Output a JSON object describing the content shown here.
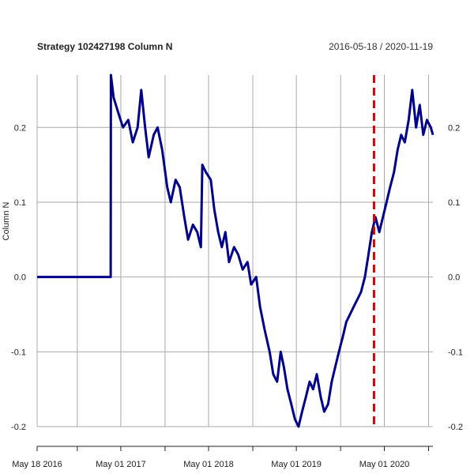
{
  "chart_data": {
    "type": "line",
    "title": "Strategy 102427198 Column N",
    "date_range": "2016-05-18 / 2020-11-19",
    "ylabel": "Column N",
    "xlabel": "",
    "xlim": [
      "2016-05-18",
      "2020-11-19"
    ],
    "ylim": [
      -0.2,
      0.27
    ],
    "y_ticks": [
      {
        "value": 0.2,
        "label": "0.2"
      },
      {
        "value": 0.1,
        "label": "0.1"
      },
      {
        "value": 0.0,
        "label": "0.0"
      },
      {
        "value": -0.1,
        "label": "-0.1"
      },
      {
        "value": -0.2,
        "label": "-0.2"
      }
    ],
    "x_labels": [
      {
        "date": "2016-05-18",
        "label": "May 18 2016"
      },
      {
        "date": "2017-05-01",
        "label": "May 01 2017"
      },
      {
        "date": "2018-05-01",
        "label": "May 01 2018"
      },
      {
        "date": "2019-05-01",
        "label": "May 01 2019"
      },
      {
        "date": "2020-05-01",
        "label": "May 01 2020"
      }
    ],
    "x_gridlines": [
      "2016-05-18",
      "2016-11-01",
      "2017-05-01",
      "2017-11-01",
      "2018-05-01",
      "2018-11-01",
      "2019-05-01",
      "2019-11-01",
      "2020-05-01",
      "2020-11-01"
    ],
    "grid": true,
    "vline": {
      "date": "2020-03-19",
      "color": "#dd0000",
      "style": "dashed"
    },
    "series": [
      {
        "color": "#00008b",
        "points": [
          [
            "2016-05-18",
            0.0
          ],
          [
            "2017-03-20",
            0.0
          ],
          [
            "2017-03-21",
            0.27
          ],
          [
            "2017-04-01",
            0.24
          ],
          [
            "2017-04-20",
            0.22
          ],
          [
            "2017-05-10",
            0.2
          ],
          [
            "2017-06-01",
            0.21
          ],
          [
            "2017-06-20",
            0.18
          ],
          [
            "2017-07-10",
            0.2
          ],
          [
            "2017-07-25",
            0.25
          ],
          [
            "2017-08-10",
            0.2
          ],
          [
            "2017-08-25",
            0.16
          ],
          [
            "2017-09-15",
            0.19
          ],
          [
            "2017-10-01",
            0.2
          ],
          [
            "2017-10-20",
            0.17
          ],
          [
            "2017-11-10",
            0.12
          ],
          [
            "2017-11-25",
            0.1
          ],
          [
            "2017-12-15",
            0.13
          ],
          [
            "2018-01-01",
            0.12
          ],
          [
            "2018-01-20",
            0.08
          ],
          [
            "2018-02-05",
            0.05
          ],
          [
            "2018-02-25",
            0.07
          ],
          [
            "2018-03-15",
            0.06
          ],
          [
            "2018-03-30",
            0.04
          ],
          [
            "2018-04-05",
            0.15
          ],
          [
            "2018-04-20",
            0.14
          ],
          [
            "2018-05-10",
            0.13
          ],
          [
            "2018-05-25",
            0.09
          ],
          [
            "2018-06-10",
            0.06
          ],
          [
            "2018-06-25",
            0.04
          ],
          [
            "2018-07-10",
            0.06
          ],
          [
            "2018-07-25",
            0.02
          ],
          [
            "2018-08-15",
            0.04
          ],
          [
            "2018-09-01",
            0.03
          ],
          [
            "2018-09-20",
            0.01
          ],
          [
            "2018-10-10",
            0.02
          ],
          [
            "2018-10-25",
            -0.01
          ],
          [
            "2018-11-15",
            0.0
          ],
          [
            "2018-12-01",
            -0.04
          ],
          [
            "2018-12-20",
            -0.07
          ],
          [
            "2019-01-10",
            -0.1
          ],
          [
            "2019-01-25",
            -0.13
          ],
          [
            "2019-02-10",
            -0.14
          ],
          [
            "2019-02-25",
            -0.1
          ],
          [
            "2019-03-10",
            -0.12
          ],
          [
            "2019-03-25",
            -0.15
          ],
          [
            "2019-04-10",
            -0.17
          ],
          [
            "2019-04-25",
            -0.19
          ],
          [
            "2019-05-10",
            -0.2
          ],
          [
            "2019-05-25",
            -0.18
          ],
          [
            "2019-06-10",
            -0.16
          ],
          [
            "2019-06-25",
            -0.14
          ],
          [
            "2019-07-10",
            -0.15
          ],
          [
            "2019-07-25",
            -0.13
          ],
          [
            "2019-08-10",
            -0.16
          ],
          [
            "2019-08-25",
            -0.18
          ],
          [
            "2019-09-10",
            -0.17
          ],
          [
            "2019-09-25",
            -0.14
          ],
          [
            "2019-10-10",
            -0.12
          ],
          [
            "2019-10-25",
            -0.1
          ],
          [
            "2019-11-10",
            -0.08
          ],
          [
            "2019-11-25",
            -0.06
          ],
          [
            "2019-12-10",
            -0.05
          ],
          [
            "2019-12-25",
            -0.04
          ],
          [
            "2020-01-10",
            -0.03
          ],
          [
            "2020-01-25",
            -0.02
          ],
          [
            "2020-02-10",
            0.0
          ],
          [
            "2020-02-25",
            0.03
          ],
          [
            "2020-03-10",
            0.06
          ],
          [
            "2020-03-25",
            0.08
          ],
          [
            "2020-04-10",
            0.06
          ],
          [
            "2020-04-25",
            0.08
          ],
          [
            "2020-05-10",
            0.1
          ],
          [
            "2020-05-25",
            0.12
          ],
          [
            "2020-06-10",
            0.14
          ],
          [
            "2020-06-25",
            0.17
          ],
          [
            "2020-07-10",
            0.19
          ],
          [
            "2020-07-25",
            0.18
          ],
          [
            "2020-08-10",
            0.21
          ],
          [
            "2020-08-25",
            0.25
          ],
          [
            "2020-09-10",
            0.2
          ],
          [
            "2020-09-25",
            0.23
          ],
          [
            "2020-10-10",
            0.19
          ],
          [
            "2020-10-25",
            0.21
          ],
          [
            "2020-11-10",
            0.2
          ],
          [
            "2020-11-19",
            0.19
          ]
        ]
      }
    ]
  }
}
